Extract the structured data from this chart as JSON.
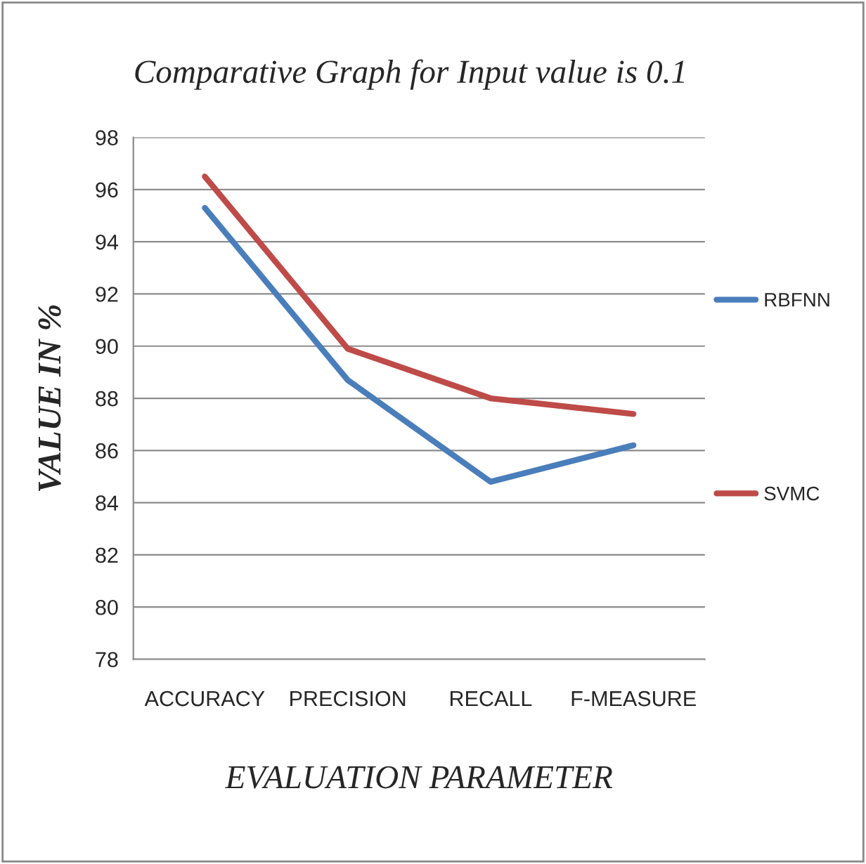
{
  "chart_data": {
    "type": "line",
    "title": "Comparative Graph for Input value is 0.1",
    "xlabel": "EVALUATION PARAMETER",
    "ylabel": "VALUE IN %",
    "categories": [
      "ACCURACY",
      "PRECISION",
      "RECALL",
      "F-MEASURE"
    ],
    "series": [
      {
        "name": "RBFNN",
        "color": "#4a7ebb",
        "values": [
          95.3,
          88.7,
          84.8,
          86.2
        ]
      },
      {
        "name": "SVMC",
        "color": "#be4b48",
        "values": [
          96.5,
          89.9,
          88.0,
          87.4
        ]
      }
    ],
    "ylim": [
      78,
      98
    ],
    "yticks": [
      78,
      80,
      82,
      84,
      86,
      88,
      90,
      92,
      94,
      96,
      98
    ],
    "grid": "y",
    "legend": "right",
    "marker": "none",
    "line_style": "solid"
  }
}
